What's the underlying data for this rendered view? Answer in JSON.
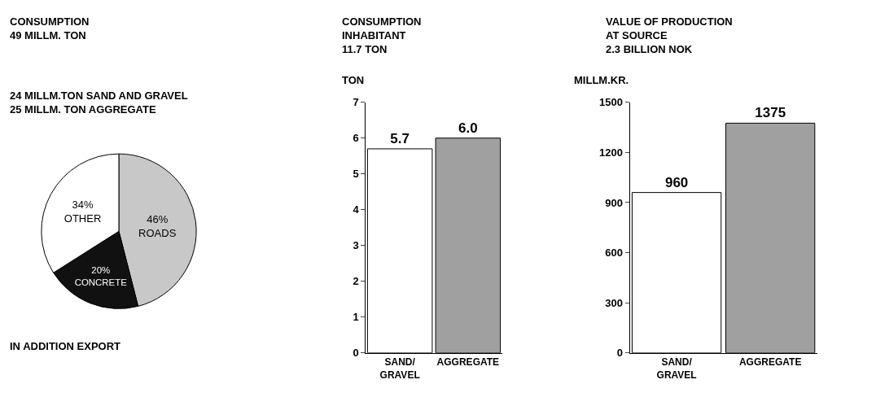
{
  "chart_data": [
    {
      "type": "pie",
      "title": "CONSUMPTION\n49 MILLM. TON",
      "categories": [
        "ROADS",
        "CONCRETE",
        "OTHER"
      ],
      "values": [
        46,
        20,
        34
      ],
      "value_labels": [
        "46%",
        "20%",
        "34%"
      ],
      "colors": [
        "#c8c8c8",
        "#111111",
        "#ffffff"
      ],
      "annotations": [
        "24 MILLM.TON SAND AND GRAVEL\n25 MILLM. TON AGGREGATE",
        "IN ADDITION EXPORT"
      ]
    },
    {
      "type": "bar",
      "title": "CONSUMPTION\nINHABITANT\n11.7 TON",
      "ylabel": "TON",
      "categories": [
        "SAND/\nGRAVEL",
        "AGGREGATE"
      ],
      "values": [
        5.7,
        6.0
      ],
      "value_labels": [
        "5.7",
        "6.0"
      ],
      "colors": [
        "#ffffff",
        "#a0a0a0"
      ],
      "ylim": [
        0,
        7
      ],
      "yticks": [
        0,
        1,
        2,
        3,
        4,
        5,
        6,
        7
      ]
    },
    {
      "type": "bar",
      "title": "VALUE OF PRODUCTION\nAT SOURCE\n2.3 BILLION NOK",
      "ylabel": "MILLM.KR.",
      "categories": [
        "SAND/\nGRAVEL",
        "AGGREGATE"
      ],
      "values": [
        960,
        1375
      ],
      "data_labels": true,
      "colors": [
        "#ffffff",
        "#a0a0a0"
      ],
      "ylim": [
        0,
        1500
      ],
      "yticks": [
        0,
        300,
        600,
        900,
        1200,
        1500
      ]
    }
  ]
}
